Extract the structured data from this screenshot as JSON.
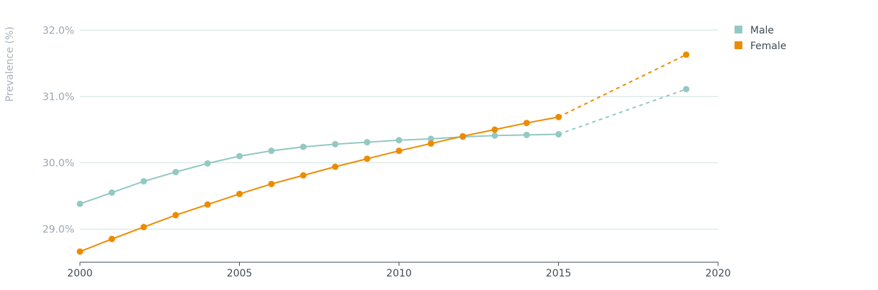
{
  "chart_data": {
    "type": "line",
    "title": "",
    "xlabel": "",
    "ylabel": "Prevalence (%)",
    "xlim": [
      2000,
      2020
    ],
    "ylim": [
      28.5,
      32.1
    ],
    "x_ticks": [
      2000,
      2005,
      2010,
      2015,
      2020
    ],
    "y_ticks": [
      29.0,
      30.0,
      31.0,
      32.0
    ],
    "y_tick_labels": [
      "29.0%",
      "30.0%",
      "31.0%",
      "32.0%"
    ],
    "grid": "horizontal",
    "legend_position": "top-right",
    "series": [
      {
        "name": "Male",
        "color": "#93c8c3",
        "x": [
          2000,
          2001,
          2002,
          2003,
          2004,
          2005,
          2006,
          2007,
          2008,
          2009,
          2010,
          2011,
          2012,
          2013,
          2014,
          2015
        ],
        "values": [
          29.38,
          29.55,
          29.72,
          29.86,
          29.99,
          30.1,
          30.18,
          30.24,
          30.28,
          30.31,
          30.34,
          30.36,
          30.39,
          30.41,
          30.42,
          30.43
        ],
        "projection": {
          "x": [
            2015,
            2019
          ],
          "values": [
            30.43,
            31.11
          ]
        }
      },
      {
        "name": "Female",
        "color": "#ed8b00",
        "x": [
          2000,
          2001,
          2002,
          2003,
          2004,
          2005,
          2006,
          2007,
          2008,
          2009,
          2010,
          2011,
          2012,
          2013,
          2014,
          2015
        ],
        "values": [
          28.66,
          28.85,
          29.03,
          29.21,
          29.37,
          29.53,
          29.68,
          29.81,
          29.94,
          30.06,
          30.18,
          30.29,
          30.4,
          30.5,
          30.6,
          30.69
        ],
        "projection": {
          "x": [
            2015,
            2019
          ],
          "values": [
            30.69,
            31.63
          ]
        }
      }
    ]
  }
}
